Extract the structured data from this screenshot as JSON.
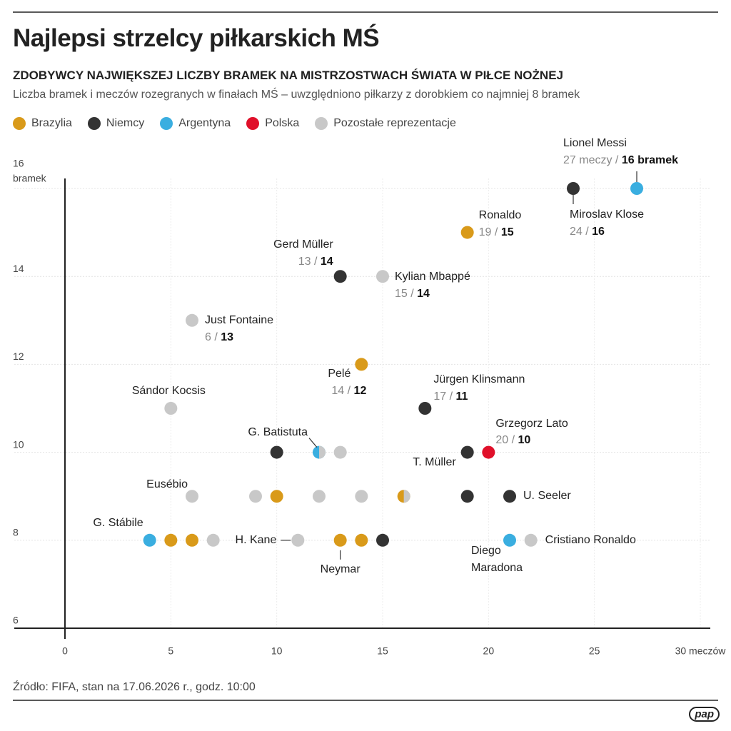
{
  "logo": "pap",
  "chart_data": {
    "type": "scatter",
    "title": "Najlepsi strzelcy piłkarskich MŚ",
    "subtitle": "ZDOBYWCY NAJWIĘKSZEJ LICZBY BRAMEK NA MISTRZOSTWACH ŚWIATA W PIŁCE NOŻNEJ",
    "description": "Liczba bramek i meczów rozegranych w finałach MŚ – uwzględniono piłkarzy z dorobkiem co najmniej 8 bramek",
    "source": "Źródło: FIFA, stan na 17.06.2026 r., godz. 10:00",
    "stat_separator": "/",
    "y_unit": "bramek",
    "xlim": [
      0,
      30
    ],
    "ylim": [
      6,
      16
    ],
    "xticks": [
      0,
      5,
      10,
      15,
      20,
      25,
      {
        "value": 30,
        "label": "30 meczów"
      }
    ],
    "yticks": [
      6,
      8,
      10,
      12,
      14,
      16
    ],
    "grid": true,
    "series": [
      {
        "name": "Brazylia",
        "color": "#d99a1a",
        "x": [
          19,
          14,
          10,
          16,
          5,
          6,
          13,
          14
        ],
        "values": [
          15,
          12,
          9,
          9,
          8,
          8,
          8,
          8
        ],
        "labels": [
          "Ronaldo",
          "Pelé",
          null,
          null,
          null,
          null,
          "Neymar",
          null
        ]
      },
      {
        "name": "Niemcy",
        "color": "#333333",
        "x": [
          24,
          13,
          17,
          10,
          19,
          19,
          21,
          15
        ],
        "values": [
          16,
          14,
          11,
          10,
          10,
          9,
          9,
          8
        ],
        "labels": [
          "Miroslav Klose",
          "Gerd Müller",
          "Jürgen Klinsmann",
          null,
          "T. Müller",
          null,
          "U. Seeler",
          null
        ]
      },
      {
        "name": "Argentyna",
        "color": "#3aaee0",
        "x": [
          27,
          12,
          4,
          21
        ],
        "values": [
          16,
          10,
          8,
          8
        ],
        "labels": [
          "Lionel Messi",
          "G. Batistuta",
          "G. Stábile",
          "Diego Maradona"
        ],
        "x_labels": [
          "27 meczy",
          null,
          null,
          null
        ],
        "value_labels": [
          "16 bramek",
          null,
          null,
          null
        ]
      },
      {
        "name": "Polska",
        "color": "#e0102a",
        "x": [
          20
        ],
        "values": [
          10
        ],
        "labels": [
          "Grzegorz Lato"
        ]
      },
      {
        "name": "Pozostałe reprezentacje",
        "color": "#c8c8c8",
        "x": [
          15,
          6,
          5,
          12,
          13,
          6,
          9,
          12,
          14,
          16,
          7,
          11,
          22
        ],
        "values": [
          14,
          13,
          11,
          10,
          10,
          9,
          9,
          9,
          9,
          9,
          8,
          8,
          8
        ],
        "labels": [
          "Kylian Mbappé",
          "Just Fontaine",
          "Sándor Kocsis",
          null,
          null,
          "Eusébio",
          null,
          null,
          null,
          null,
          null,
          "H. Kane",
          "Cristiano Ronaldo"
        ]
      }
    ]
  }
}
